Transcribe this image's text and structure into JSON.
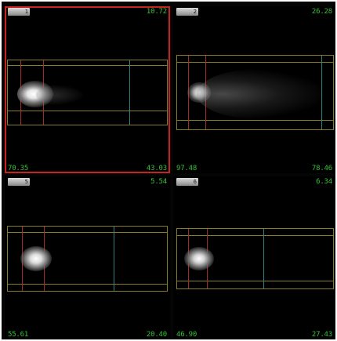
{
  "viewer": {
    "panels": [
      {
        "label": "1",
        "top_right": "10.72",
        "bottom_left": "70.35",
        "bottom_right": "43.03",
        "selected": true
      },
      {
        "label": "2",
        "top_right": "26.28",
        "bottom_left": "97.48",
        "bottom_right": "78.46",
        "selected": false
      },
      {
        "label": "5",
        "top_right": "5.54",
        "bottom_left": "55.61",
        "bottom_right": "20.40",
        "selected": false
      },
      {
        "label": "6",
        "top_right": "6.34",
        "bottom_left": "46.90",
        "bottom_right": "27.43",
        "selected": false
      }
    ]
  },
  "colors": {
    "selection_border": "#c8241f",
    "value_text": "#35c235",
    "lane_border": "#8a7d2a",
    "marker_red": "#a92a24",
    "marker_teal": "#2f7f7f"
  }
}
